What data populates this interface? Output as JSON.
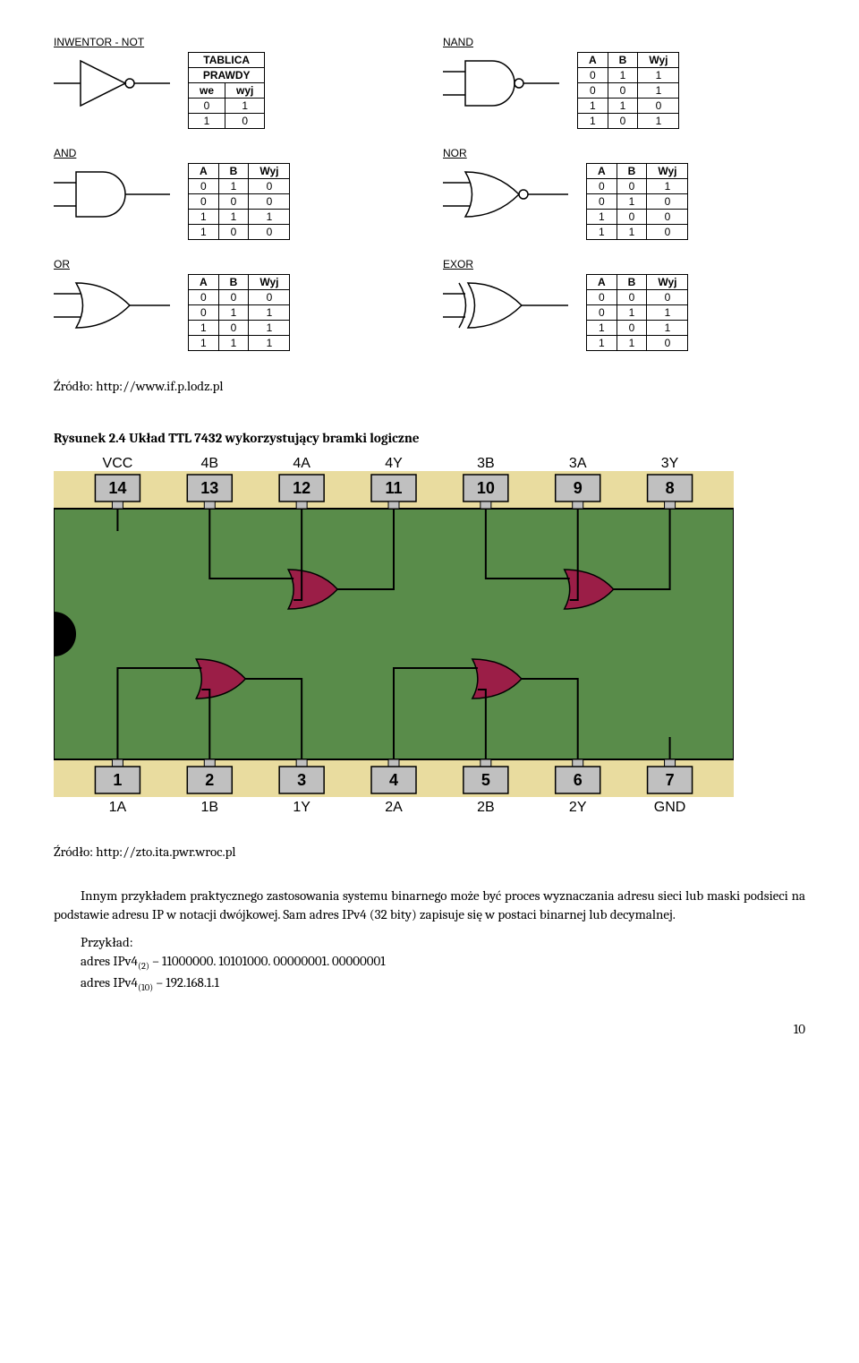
{
  "gates": {
    "not": {
      "label": "INWENTOR - NOT",
      "table_title1": "TABLICA",
      "table_title2": "PRAWDY",
      "headers": [
        "we",
        "wyj"
      ],
      "rows": [
        [
          "0",
          "1"
        ],
        [
          "1",
          "0"
        ]
      ]
    },
    "nand": {
      "label": "NAND",
      "headers": [
        "A",
        "B",
        "Wyj"
      ],
      "rows": [
        [
          "0",
          "1",
          "1"
        ],
        [
          "0",
          "0",
          "1"
        ],
        [
          "1",
          "1",
          "0"
        ],
        [
          "1",
          "0",
          "1"
        ]
      ]
    },
    "and": {
      "label": "AND",
      "headers": [
        "A",
        "B",
        "Wyj"
      ],
      "rows": [
        [
          "0",
          "1",
          "0"
        ],
        [
          "0",
          "0",
          "0"
        ],
        [
          "1",
          "1",
          "1"
        ],
        [
          "1",
          "0",
          "0"
        ]
      ]
    },
    "nor": {
      "label": "NOR",
      "headers": [
        "A",
        "B",
        "Wyj"
      ],
      "rows": [
        [
          "0",
          "0",
          "1"
        ],
        [
          "0",
          "1",
          "0"
        ],
        [
          "1",
          "0",
          "0"
        ],
        [
          "1",
          "1",
          "0"
        ]
      ]
    },
    "or": {
      "label": "OR",
      "headers": [
        "A",
        "B",
        "Wyj"
      ],
      "rows": [
        [
          "0",
          "0",
          "0"
        ],
        [
          "0",
          "1",
          "1"
        ],
        [
          "1",
          "0",
          "1"
        ],
        [
          "1",
          "1",
          "1"
        ]
      ]
    },
    "exor": {
      "label": "EXOR",
      "headers": [
        "A",
        "B",
        "Wyj"
      ],
      "rows": [
        [
          "0",
          "0",
          "0"
        ],
        [
          "0",
          "1",
          "1"
        ],
        [
          "1",
          "0",
          "1"
        ],
        [
          "1",
          "1",
          "0"
        ]
      ]
    }
  },
  "source1": "Źródło: http://www.if.p.lodz.pl",
  "caption": "Rysunek 2.4 Układ TTL 7432 wykorzystujący bramki logiczne",
  "chip": {
    "bg_outer": "#e9dc9f",
    "bg_inner": "#598c4a",
    "gate_fill": "#9b1e47",
    "top_labels_outer": [
      "VCC",
      "4B",
      "4A",
      "4Y",
      "3B",
      "3A",
      "3Y"
    ],
    "top_pins": [
      "14",
      "13",
      "12",
      "11",
      "10",
      "9",
      "8"
    ],
    "bottom_pins": [
      "1",
      "2",
      "3",
      "4",
      "5",
      "6",
      "7"
    ],
    "bottom_labels_outer": [
      "1A",
      "1B",
      "1Y",
      "2A",
      "2B",
      "2Y",
      "GND"
    ]
  },
  "source2": "Źródło: http://zto.ita.pwr.wroc.pl",
  "paragraph": "Innym przykładem praktycznego zastosowania systemu binarnego może być proces wyznaczania adresu sieci lub maski podsieci na podstawie adresu IP w notacji dwójkowej. Sam adres IPv4 (32 bity) zapisuje się w postaci binarnej lub decymalnej.",
  "example_label": "Przykład:",
  "example_line1_pre": "adres IPv4",
  "example_line1_sub": "(2)",
  "example_line1_post": " – 11000000. 10101000. 00000001. 00000001",
  "example_line2_pre": "adres IPv4",
  "example_line2_sub": "(10)",
  "example_line2_post": " – 192.168.1.1",
  "page_number": "10"
}
